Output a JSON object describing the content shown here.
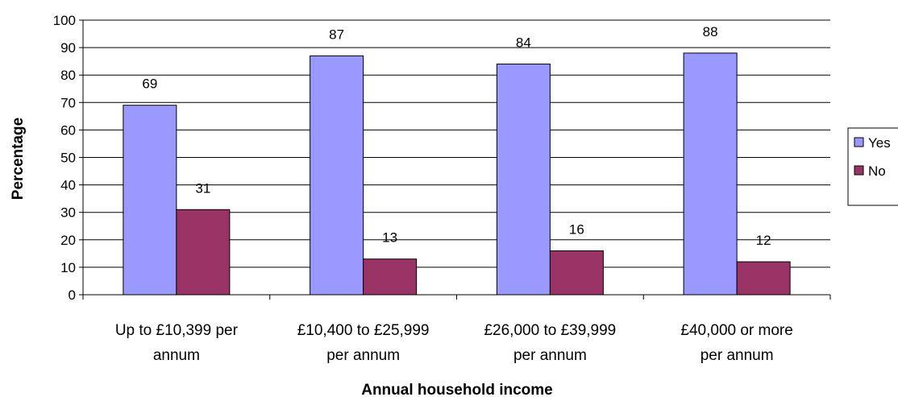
{
  "chart_data": {
    "type": "bar",
    "categories": [
      [
        "Up to £10,399 per",
        "annum"
      ],
      [
        "£10,400 to £25,999",
        "per annum"
      ],
      [
        "£26,000 to £39,999",
        "per annum"
      ],
      [
        "£40,000 or more",
        "per annum"
      ]
    ],
    "series": [
      {
        "name": "Yes",
        "values": [
          69,
          87,
          84,
          88
        ],
        "color": "#9999ff"
      },
      {
        "name": "No",
        "values": [
          31,
          13,
          16,
          12
        ],
        "color": "#993366"
      }
    ],
    "xlabel": "Annual household income",
    "ylabel": "Percentage",
    "ylim": [
      0,
      100
    ],
    "yticks": [
      0,
      10,
      20,
      30,
      40,
      50,
      60,
      70,
      80,
      90,
      100
    ],
    "grid": true,
    "legend_position": "right"
  }
}
